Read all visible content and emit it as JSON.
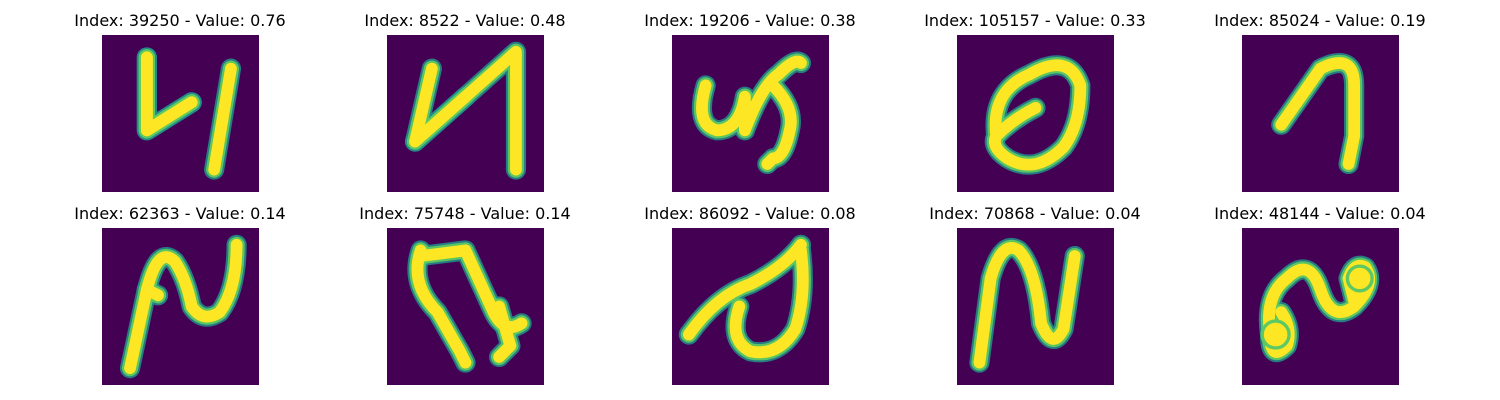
{
  "colors": {
    "background": "#440154",
    "stroke_core": "#fde725",
    "stroke_mid": "#5ec962",
    "stroke_edge": "#21918c"
  },
  "panels": [
    {
      "title": "Index: 39250 - Value: 0.76",
      "index": 39250,
      "value": 0.76
    },
    {
      "title": "Index: 8522 - Value: 0.48",
      "index": 8522,
      "value": 0.48
    },
    {
      "title": "Index: 19206 - Value: 0.38",
      "index": 19206,
      "value": 0.38
    },
    {
      "title": "Index: 105157 - Value: 0.33",
      "index": 105157,
      "value": 0.33
    },
    {
      "title": "Index: 85024 - Value: 0.19",
      "index": 85024,
      "value": 0.19
    },
    {
      "title": "Index: 62363 - Value: 0.14",
      "index": 62363,
      "value": 0.14
    },
    {
      "title": "Index: 75748 - Value: 0.14",
      "index": 75748,
      "value": 0.14
    },
    {
      "title": "Index: 86092 - Value: 0.08",
      "index": 86092,
      "value": 0.08
    },
    {
      "title": "Index: 70868 - Value: 0.04",
      "index": 70868,
      "value": 0.04
    },
    {
      "title": "Index: 48144 - Value: 0.04",
      "index": 48144,
      "value": 0.04
    }
  ]
}
